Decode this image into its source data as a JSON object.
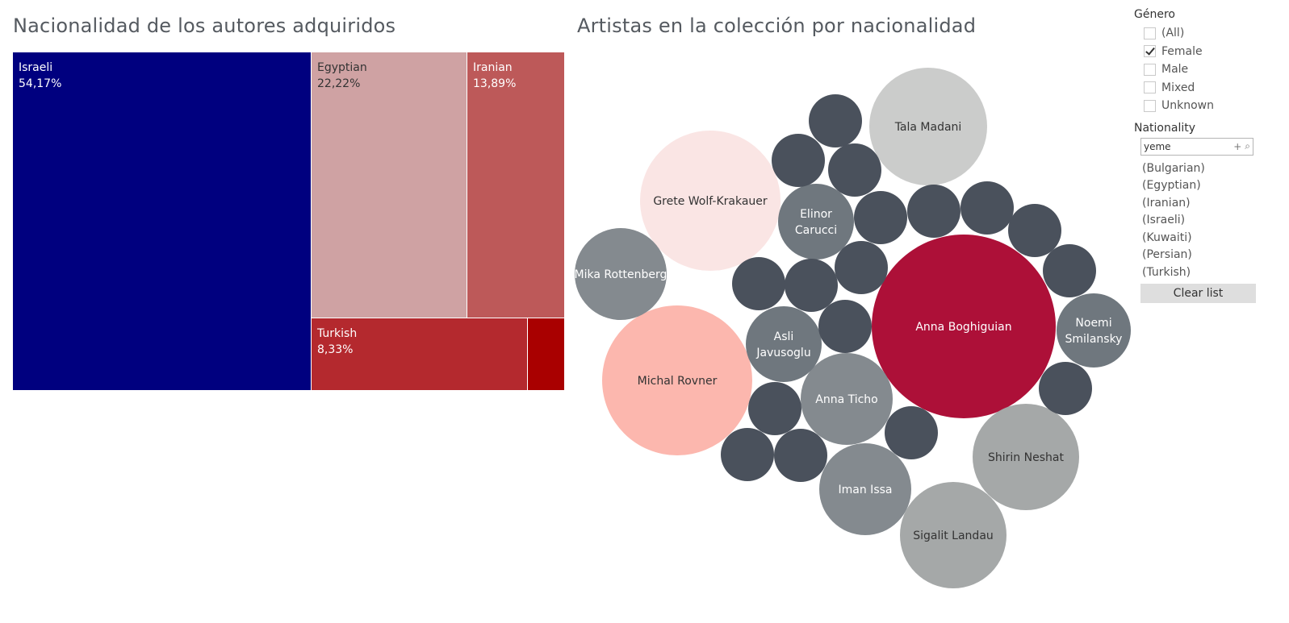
{
  "chart_data": [
    {
      "type": "treemap",
      "title": "Nacionalidad de los autores adquiridos",
      "cells": [
        {
          "label": "Israeli",
          "value": "54,17%",
          "color": "#00007f"
        },
        {
          "label": "Egyptian",
          "value": "22,22%",
          "color": "#cfa2a3"
        },
        {
          "label": "Iranian",
          "value": "13,89%",
          "color": "#bd5959"
        },
        {
          "label": "Turkish",
          "value": "8,33%",
          "color": "#b4292e"
        },
        {
          "label": "",
          "value": "",
          "color": "#a90000"
        }
      ]
    },
    {
      "type": "bubble",
      "title": "Artistas en la colección por nacionalidad",
      "bubbles": [
        {
          "name": "Anna Boghiguian",
          "color": "#ad1038",
          "text_color": "#ffffff"
        },
        {
          "name": "Michal Rovner",
          "color": "#fcb7ae",
          "text_color": "#333333"
        },
        {
          "name": "Grete Wolf-Krakauer",
          "color": "#fae5e4",
          "text_color": "#333333"
        },
        {
          "name": "Tala Madani",
          "color": "#cbcccb",
          "text_color": "#333333"
        },
        {
          "name": "Shirin Neshat",
          "color": "#a5a8a8",
          "text_color": "#333333"
        },
        {
          "name": "Sigalit Landau",
          "color": "#a5a8a8",
          "text_color": "#333333"
        },
        {
          "name": "Anna Ticho",
          "color": "#848a8f",
          "text_color": "#ffffff"
        },
        {
          "name": "Iman Issa",
          "color": "#848a8f",
          "text_color": "#ffffff"
        },
        {
          "name": "Mika Rottenberg",
          "color": "#848a8f",
          "text_color": "#ffffff"
        },
        {
          "name": "Elinor Carucci",
          "color": "#6f777e",
          "text_color": "#ffffff"
        },
        {
          "name": "Asli Javusoglu",
          "color": "#6f777e",
          "text_color": "#ffffff"
        },
        {
          "name": "Noemi Smilansky",
          "color": "#6f777e",
          "text_color": "#ffffff"
        },
        {
          "name": "",
          "color": "#4a515c"
        },
        {
          "name": "",
          "color": "#4a515c"
        },
        {
          "name": "",
          "color": "#4a515c"
        },
        {
          "name": "",
          "color": "#4a515c"
        },
        {
          "name": "",
          "color": "#4a515c"
        },
        {
          "name": "",
          "color": "#4a515c"
        },
        {
          "name": "",
          "color": "#4a515c"
        },
        {
          "name": "",
          "color": "#4a515c"
        },
        {
          "name": "",
          "color": "#4a515c"
        },
        {
          "name": "",
          "color": "#4a515c"
        },
        {
          "name": "",
          "color": "#4a515c"
        },
        {
          "name": "",
          "color": "#4a515c"
        },
        {
          "name": "",
          "color": "#4a515c"
        },
        {
          "name": "",
          "color": "#4a515c"
        },
        {
          "name": "",
          "color": "#4a515c"
        },
        {
          "name": "",
          "color": "#4a515c"
        },
        {
          "name": "",
          "color": "#4a515c"
        },
        {
          "name": "",
          "color": "#4a515c"
        },
        {
          "name": "",
          "color": "#4a515c"
        },
        {
          "name": "",
          "color": "#4a515c"
        }
      ]
    }
  ],
  "filters": {
    "genero": {
      "title": "Género",
      "options": [
        {
          "label": "(All)",
          "checked": false
        },
        {
          "label": "Female",
          "checked": true
        },
        {
          "label": "Male",
          "checked": false
        },
        {
          "label": "Mixed",
          "checked": false
        },
        {
          "label": "Unknown",
          "checked": false
        }
      ]
    },
    "nationality": {
      "title": "Nationality",
      "search_value": "yeme",
      "options": [
        "(Bulgarian)",
        "(Egyptian)",
        "(Iranian)",
        "(Israeli)",
        "(Kuwaiti)",
        "(Persian)",
        "(Turkish)"
      ],
      "clear_label": "Clear list"
    }
  }
}
